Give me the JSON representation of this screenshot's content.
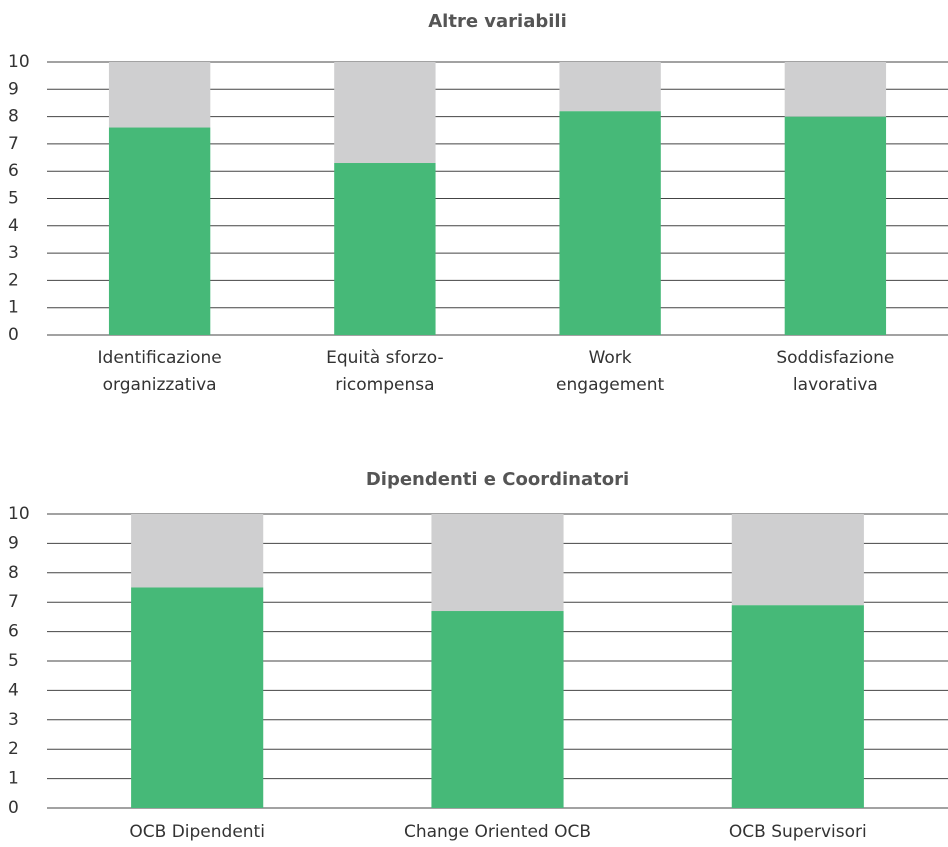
{
  "chart_data": [
    {
      "type": "bar",
      "stacked": true,
      "title": "Altre variabili",
      "categories": [
        [
          "Identificazione",
          "organizzativa"
        ],
        [
          "Equità sforzo-",
          "ricompensa"
        ],
        [
          "Work",
          "engagement"
        ],
        [
          "Soddisfazione",
          "lavorativa"
        ]
      ],
      "series": [
        {
          "color": "#46b978",
          "values": [
            7.6,
            6.3,
            8.2,
            8.0
          ]
        },
        {
          "color": "#cfcfd0",
          "values": [
            2.4,
            3.7,
            1.8,
            2.0
          ]
        }
      ],
      "ylim": [
        0,
        10
      ],
      "yticks": [
        0,
        1,
        2,
        3,
        4,
        5,
        6,
        7,
        8,
        9,
        10
      ],
      "grid": true
    },
    {
      "type": "bar",
      "stacked": true,
      "title": "Dipendenti e Coordinatori",
      "categories": [
        [
          "OCB Dipendenti"
        ],
        [
          "Change Oriented OCB"
        ],
        [
          "OCB Supervisori"
        ]
      ],
      "series": [
        {
          "color": "#46b978",
          "values": [
            7.5,
            6.7,
            6.9
          ]
        },
        {
          "color": "#cfcfd0",
          "values": [
            2.5,
            3.3,
            3.1
          ]
        }
      ],
      "ylim": [
        0,
        10
      ],
      "yticks": [
        0,
        1,
        2,
        3,
        4,
        5,
        6,
        7,
        8,
        9,
        10
      ],
      "grid": true
    }
  ]
}
